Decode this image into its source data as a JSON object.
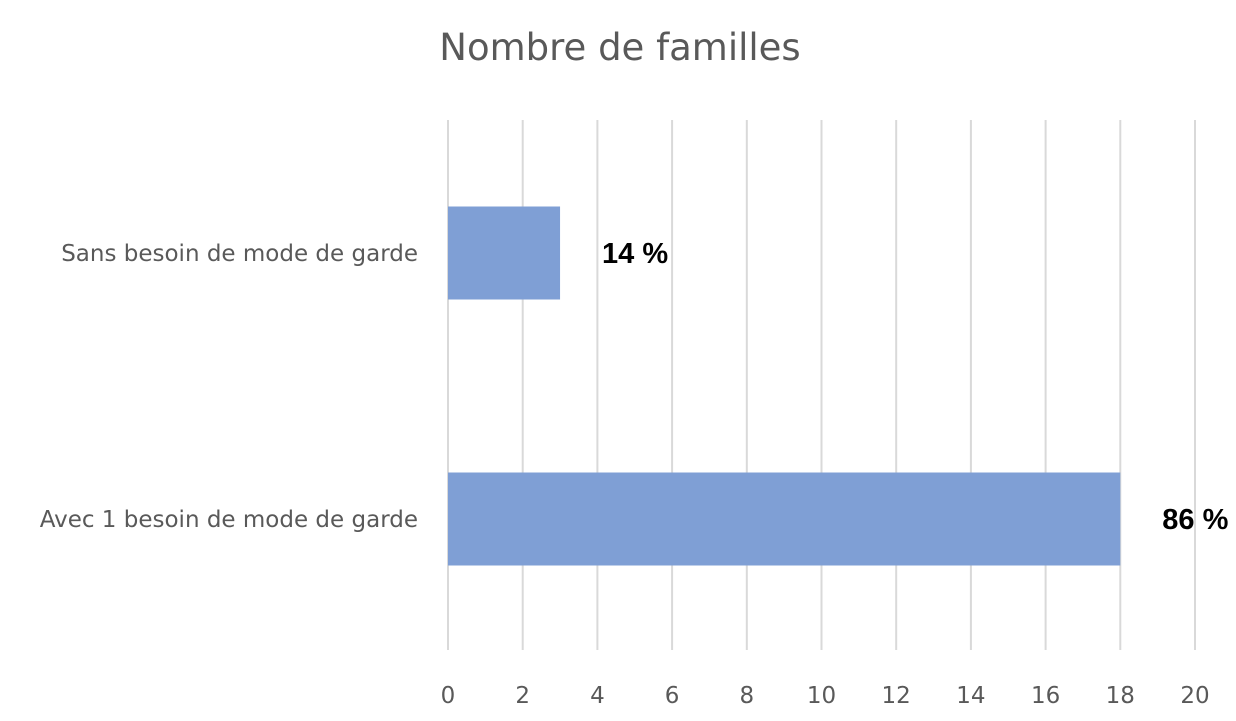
{
  "chart_data": {
    "type": "bar",
    "orientation": "horizontal",
    "title": "Nombre de familles",
    "categories": [
      "Sans besoin de mode de garde",
      "Avec 1 besoin de mode de garde"
    ],
    "values": [
      3,
      18
    ],
    "data_labels": [
      "14 %",
      "86 %"
    ],
    "xlim": [
      0,
      20
    ],
    "x_ticks": [
      "0",
      "2",
      "4",
      "6",
      "8",
      "10",
      "12",
      "14",
      "16",
      "18",
      "20"
    ],
    "grid": "vertical",
    "legend": "none",
    "bar_color": "#7f9fd5"
  }
}
